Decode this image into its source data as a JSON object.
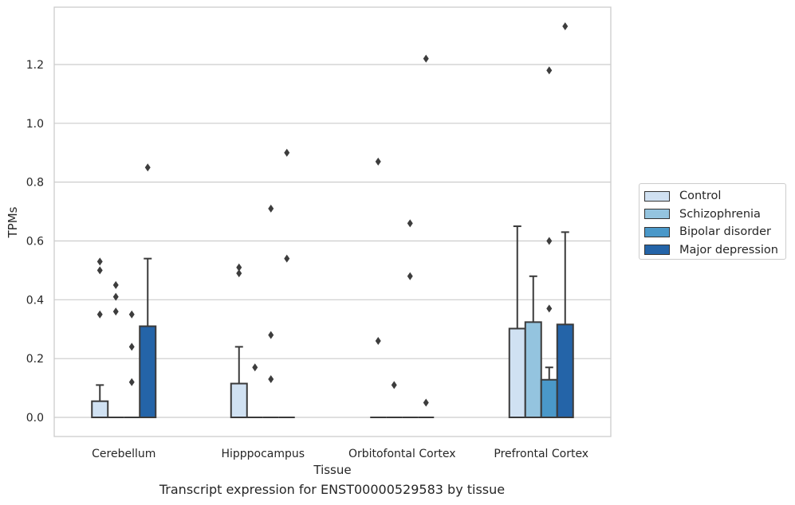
{
  "chart_data": {
    "type": "bar",
    "title": "",
    "caption": "Transcript expression for ENST00000529583 by tissue",
    "xlabel": "Tissue",
    "ylabel": "TPMs",
    "ylim": [
      -0.065,
      1.395
    ],
    "yticks": [
      "0.0",
      "0.2",
      "0.4",
      "0.6",
      "0.8",
      "1.0",
      "1.2"
    ],
    "grid": true,
    "legend_position": "right",
    "categories": [
      "Cerebellum",
      "Hipppocampus",
      "Orbitofontal Cortex",
      "Prefrontal Cortex"
    ],
    "series": [
      {
        "name": "Control",
        "color": "#d0e1f2",
        "values": [
          0.055,
          0.115,
          0.0,
          0.302
        ],
        "error_upper": [
          0.11,
          0.24,
          0.0,
          0.65
        ],
        "outliers": [
          [
            0.35,
            0.5,
            0.53
          ],
          [
            0.49,
            0.51
          ],
          [
            0.26,
            0.87
          ],
          []
        ]
      },
      {
        "name": "Schizophrenia",
        "color": "#94c4df",
        "values": [
          0.0,
          0.0,
          0.0,
          0.324
        ],
        "error_upper": [
          0.0,
          0.0,
          0.0,
          0.48
        ],
        "outliers": [
          [
            0.36,
            0.41,
            0.45
          ],
          [
            0.17
          ],
          [
            0.11
          ],
          []
        ]
      },
      {
        "name": "Bipolar disorder",
        "color": "#4a98c9",
        "values": [
          0.0,
          0.0,
          0.0,
          0.128
        ],
        "error_upper": [
          0.0,
          0.0,
          0.0,
          0.17
        ],
        "outliers": [
          [
            0.12,
            0.24,
            0.35
          ],
          [
            0.13,
            0.28,
            0.71
          ],
          [
            0.48,
            0.66
          ],
          [
            0.37,
            0.6,
            1.18
          ]
        ]
      },
      {
        "name": "Major depression",
        "color": "#2464a8",
        "values": [
          0.31,
          0.0,
          0.0,
          0.316
        ],
        "error_upper": [
          0.54,
          0.0,
          0.0,
          0.63
        ],
        "outliers": [
          [
            0.85
          ],
          [
            0.54,
            0.9
          ],
          [
            0.05,
            1.22
          ],
          [
            1.33
          ]
        ]
      }
    ]
  }
}
